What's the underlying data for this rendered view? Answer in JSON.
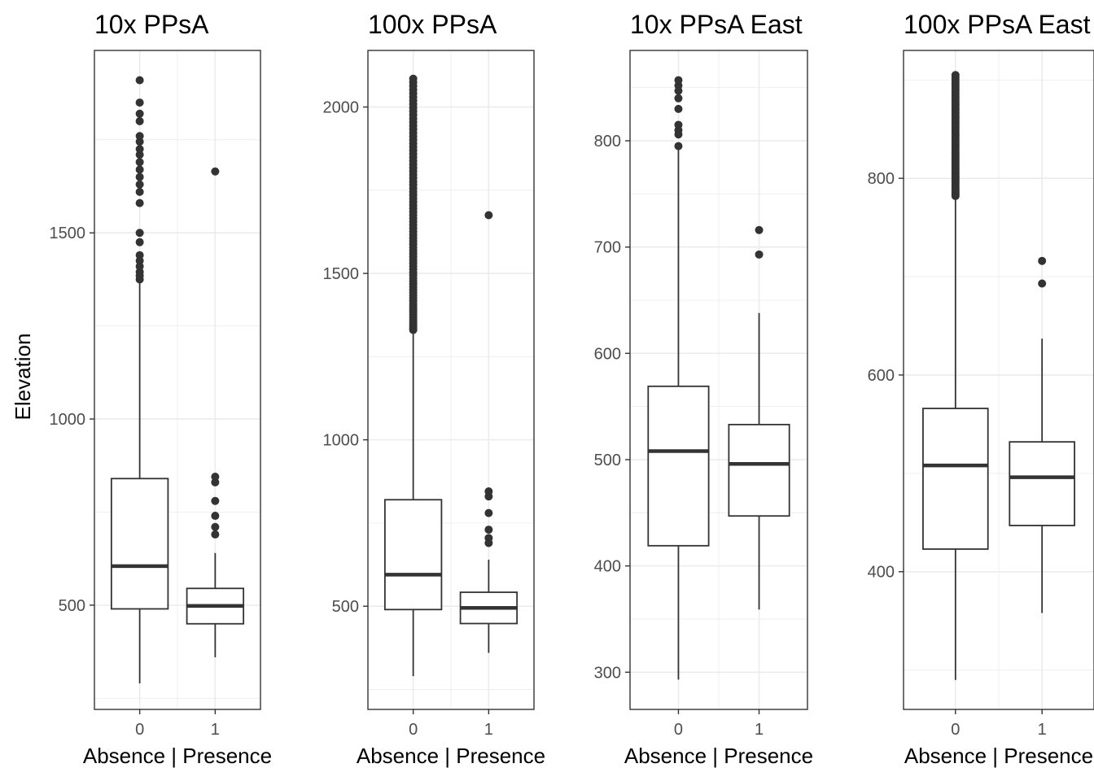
{
  "chart_data": [
    {
      "type": "box",
      "title": "10x PPsA",
      "xlabel": "Absence | Presence",
      "ylabel": "Elevation",
      "categories": [
        "0",
        "1"
      ],
      "ylim": [
        220,
        1990
      ],
      "yticks": [
        500,
        1000,
        1500
      ],
      "grid": true,
      "boxes": [
        {
          "category": "0",
          "min": 290,
          "q1": 490,
          "median": 605,
          "q3": 840,
          "max": 1370,
          "outliers": [
            1375,
            1385,
            1395,
            1410,
            1425,
            1440,
            1475,
            1500,
            1580,
            1610,
            1630,
            1650,
            1670,
            1690,
            1710,
            1725,
            1745,
            1760,
            1800,
            1820,
            1850,
            1910
          ]
        },
        {
          "category": "1",
          "min": 360,
          "q1": 450,
          "median": 498,
          "q3": 545,
          "max": 640,
          "outliers": [
            690,
            710,
            740,
            780,
            830,
            845,
            1665
          ]
        }
      ]
    },
    {
      "type": "box",
      "title": "100x PPsA",
      "xlabel": "Absence | Presence",
      "ylabel": "",
      "categories": [
        "0",
        "1"
      ],
      "ylim": [
        190,
        2170
      ],
      "yticks": [
        500,
        1000,
        1500,
        2000
      ],
      "grid": true,
      "boxes": [
        {
          "category": "0",
          "min": 290,
          "q1": 490,
          "median": 595,
          "q3": 820,
          "max": 1325,
          "outliers_range": [
            1330,
            2085
          ],
          "outliers_count": 80
        },
        {
          "category": "1",
          "min": 360,
          "q1": 448,
          "median": 495,
          "q3": 542,
          "max": 640,
          "outliers": [
            690,
            705,
            730,
            780,
            830,
            845,
            1675
          ]
        }
      ]
    },
    {
      "type": "box",
      "title": "10x PPsA East",
      "xlabel": "Absence | Presence",
      "ylabel": "",
      "categories": [
        "0",
        "1"
      ],
      "ylim": [
        265,
        885
      ],
      "yticks": [
        300,
        400,
        500,
        600,
        700,
        800
      ],
      "grid": true,
      "boxes": [
        {
          "category": "0",
          "min": 293,
          "q1": 419,
          "median": 508,
          "q3": 569,
          "max": 792,
          "outliers": [
            795,
            806,
            810,
            815,
            830,
            840,
            847,
            852,
            857
          ]
        },
        {
          "category": "1",
          "min": 359,
          "q1": 447,
          "median": 496,
          "q3": 533,
          "max": 638,
          "outliers": [
            693,
            716
          ]
        }
      ]
    },
    {
      "type": "box",
      "title": "100x PPsA East",
      "xlabel": "Absence | Presence",
      "ylabel": "",
      "categories": [
        "0",
        "1"
      ],
      "ylim": [
        260,
        930
      ],
      "yticks": [
        400,
        600,
        800
      ],
      "grid": true,
      "boxes": [
        {
          "category": "0",
          "min": 290,
          "q1": 423,
          "median": 508,
          "q3": 566,
          "max": 780,
          "outliers_range": [
            782,
            905
          ],
          "outliers_count": 60
        },
        {
          "category": "1",
          "min": 358,
          "q1": 447,
          "median": 496,
          "q3": 532,
          "max": 637,
          "outliers": [
            693,
            716
          ]
        }
      ]
    }
  ]
}
